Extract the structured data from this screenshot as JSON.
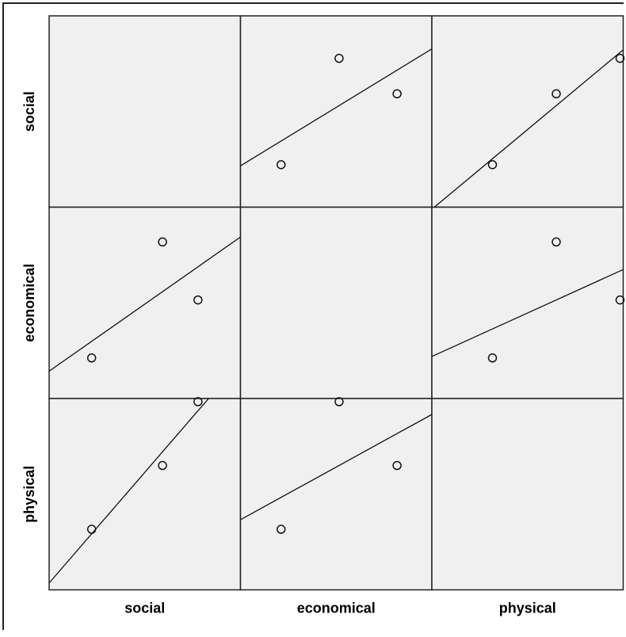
{
  "chart_data": {
    "type": "scatter",
    "subtype": "scatterplot-matrix",
    "variables": [
      "social",
      "economical",
      "physical"
    ],
    "observations": {
      "social": [
        1.0,
        2.0,
        2.5
      ],
      "economical": [
        1.0,
        3.0,
        2.0
      ],
      "physical": [
        1.0,
        2.0,
        3.0
      ]
    },
    "variable_ranges": {
      "social": [
        0.4,
        3.1
      ],
      "economical": [
        0.3,
        3.6
      ],
      "physical": [
        0.05,
        3.05
      ]
    },
    "fit_lines": true,
    "diagonal_panels": "empty",
    "panel_background": "#f0f0f0",
    "point_marker": "open-circle",
    "grid": false,
    "legend": "none"
  }
}
